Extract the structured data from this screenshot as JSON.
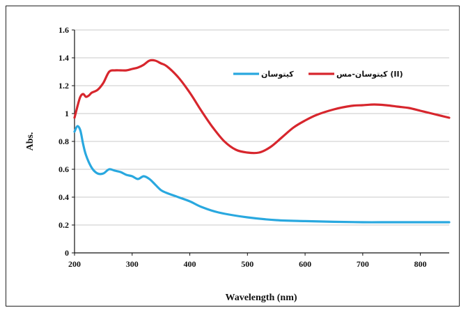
{
  "chart_data": {
    "type": "line",
    "xlabel": "Wavelength (nm)",
    "ylabel": "Abs.",
    "xlim": [
      200,
      850
    ],
    "ylim": [
      0,
      1.6
    ],
    "x_ticks": [
      "200",
      "300",
      "400",
      "500",
      "600",
      "700",
      "800"
    ],
    "y_ticks": [
      "0",
      "0.2",
      "0.4",
      "0.6",
      "0.8",
      "1",
      "1.2",
      "1.4",
      "1.6"
    ],
    "grid": "horizontal",
    "legend_position": "top-right",
    "series": [
      {
        "name": "کیتوسان",
        "color": "#29a8df",
        "x": [
          200,
          205,
          210,
          215,
          220,
          230,
          240,
          250,
          260,
          270,
          280,
          290,
          300,
          310,
          320,
          330,
          340,
          350,
          360,
          380,
          400,
          420,
          450,
          500,
          550,
          600,
          650,
          700,
          750,
          800,
          850
        ],
        "y": [
          0.87,
          0.91,
          0.88,
          0.78,
          0.7,
          0.61,
          0.57,
          0.57,
          0.6,
          0.59,
          0.58,
          0.56,
          0.55,
          0.53,
          0.55,
          0.53,
          0.49,
          0.45,
          0.43,
          0.4,
          0.37,
          0.33,
          0.29,
          0.255,
          0.235,
          0.228,
          0.223,
          0.22,
          0.22,
          0.22,
          0.22
        ]
      },
      {
        "name": "کیتوسان-مس (II)",
        "color": "#d7262d",
        "x": [
          200,
          205,
          210,
          215,
          220,
          225,
          230,
          240,
          250,
          260,
          270,
          280,
          290,
          300,
          310,
          320,
          330,
          340,
          350,
          360,
          380,
          400,
          420,
          440,
          460,
          480,
          500,
          520,
          540,
          560,
          580,
          600,
          620,
          650,
          680,
          700,
          720,
          740,
          760,
          780,
          800,
          820,
          850
        ],
        "y": [
          0.97,
          1.05,
          1.12,
          1.14,
          1.12,
          1.13,
          1.15,
          1.17,
          1.22,
          1.3,
          1.31,
          1.31,
          1.31,
          1.32,
          1.33,
          1.35,
          1.38,
          1.38,
          1.36,
          1.34,
          1.26,
          1.15,
          1.02,
          0.9,
          0.8,
          0.74,
          0.72,
          0.72,
          0.76,
          0.83,
          0.9,
          0.95,
          0.99,
          1.03,
          1.055,
          1.06,
          1.065,
          1.06,
          1.05,
          1.04,
          1.02,
          1.0,
          0.97
        ]
      }
    ]
  }
}
